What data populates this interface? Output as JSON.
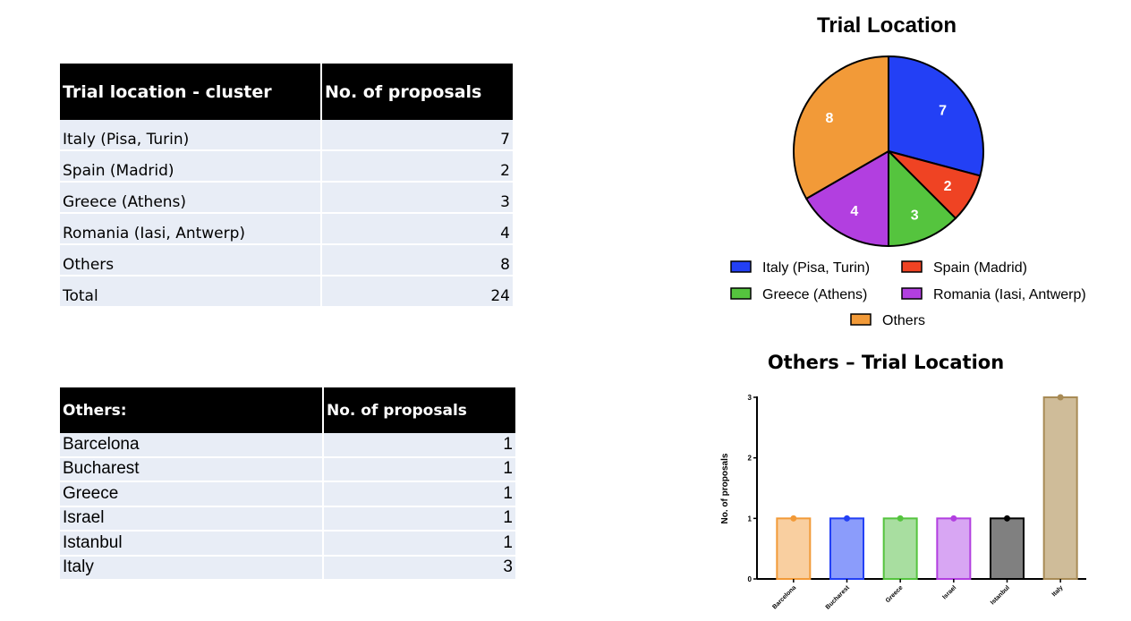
{
  "table1": {
    "headers": [
      "Trial location - cluster",
      "No. of proposals"
    ],
    "rows": [
      {
        "label": "Italy (Pisa, Turin)",
        "value": "7"
      },
      {
        "label": "Spain (Madrid)",
        "value": "2"
      },
      {
        "label": "Greece (Athens)",
        "value": "3"
      },
      {
        "label": "Romania (Iasi, Antwerp)",
        "value": "4"
      },
      {
        "label": "Others",
        "value": "8"
      },
      {
        "label": "Total",
        "value": "24"
      }
    ]
  },
  "table2": {
    "headers": [
      "Others:",
      "No. of proposals"
    ],
    "rows": [
      {
        "label": "Barcelona",
        "value": "1"
      },
      {
        "label": "Bucharest",
        "value": "1"
      },
      {
        "label": "Greece",
        "value": "1"
      },
      {
        "label": "Israel",
        "value": "1"
      },
      {
        "label": "Istanbul",
        "value": "1"
      },
      {
        "label": "Italy",
        "value": "3"
      }
    ]
  },
  "chart_data": [
    {
      "type": "pie",
      "title": "Trial Location",
      "legend_position": "bottom",
      "slices": [
        {
          "label": "Italy (Pisa, Turin)",
          "value": 7,
          "color": "#2340f5"
        },
        {
          "label": "Spain (Madrid)",
          "value": 2,
          "color": "#ef4323"
        },
        {
          "label": "Greece (Athens)",
          "value": 3,
          "color": "#55c43e"
        },
        {
          "label": "Romania (Iasi, Antwerp)",
          "value": 4,
          "color": "#b23fe0"
        },
        {
          "label": "Others",
          "value": 8,
          "color": "#f29a38"
        }
      ]
    },
    {
      "type": "bar",
      "title": "Others – Trial Location",
      "xlabel": "",
      "ylabel": "No. of proposals",
      "ylim": [
        0,
        3
      ],
      "yticks": [
        0,
        1,
        2,
        3
      ],
      "categories": [
        "Barcelona",
        "Bucharest",
        "Greece",
        "Israel",
        "Istanbul",
        "Italy"
      ],
      "values": [
        1,
        1,
        1,
        1,
        1,
        3
      ],
      "fill_colors": [
        "#f9cfa0",
        "#8b9cfb",
        "#a8dea0",
        "#d8a6f3",
        "#808080",
        "#cfbc99"
      ],
      "edge_colors": [
        "#f29a38",
        "#2340f5",
        "#55c43e",
        "#b23fe0",
        "#000000",
        "#a88b56"
      ]
    }
  ]
}
